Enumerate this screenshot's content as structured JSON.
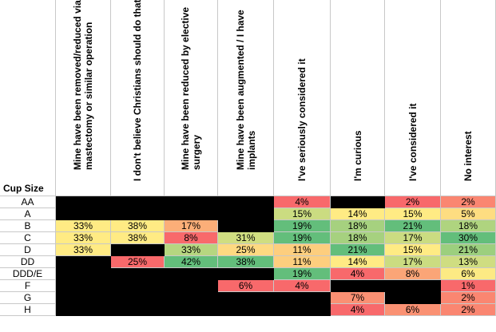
{
  "chart_data": {
    "type": "heatmap",
    "row_header": "Cup Size",
    "columns": [
      "Mine have been removed/reduced via mastectomy or similar operation",
      "I don't believe Christians should do that",
      "Mine have been reduced by elective surgery",
      "Mine have been augmented / I have implants",
      "I've seriously considered it",
      "I'm curious",
      "I've considered it",
      "No interest"
    ],
    "rows": [
      "AA",
      "A",
      "B",
      "C",
      "D",
      "DD",
      "DDD/E",
      "F",
      "G",
      "H"
    ],
    "values": [
      [
        null,
        null,
        null,
        null,
        4,
        null,
        2,
        2
      ],
      [
        null,
        null,
        null,
        null,
        15,
        14,
        15,
        5
      ],
      [
        33,
        38,
        17,
        null,
        19,
        18,
        21,
        18
      ],
      [
        33,
        38,
        8,
        31,
        19,
        18,
        17,
        30
      ],
      [
        33,
        null,
        33,
        25,
        11,
        21,
        15,
        21
      ],
      [
        null,
        25,
        42,
        38,
        11,
        14,
        17,
        13
      ],
      [
        null,
        null,
        null,
        null,
        19,
        4,
        8,
        6
      ],
      [
        null,
        null,
        null,
        6,
        4,
        null,
        null,
        1
      ],
      [
        null,
        null,
        null,
        null,
        null,
        7,
        null,
        2
      ],
      [
        null,
        null,
        null,
        null,
        null,
        4,
        6,
        2
      ]
    ],
    "unit": "%",
    "color_scale": {
      "low": "#f8696b",
      "mid": "#ffeb84",
      "high": "#63be7b"
    },
    "empty_color": "#000000"
  }
}
